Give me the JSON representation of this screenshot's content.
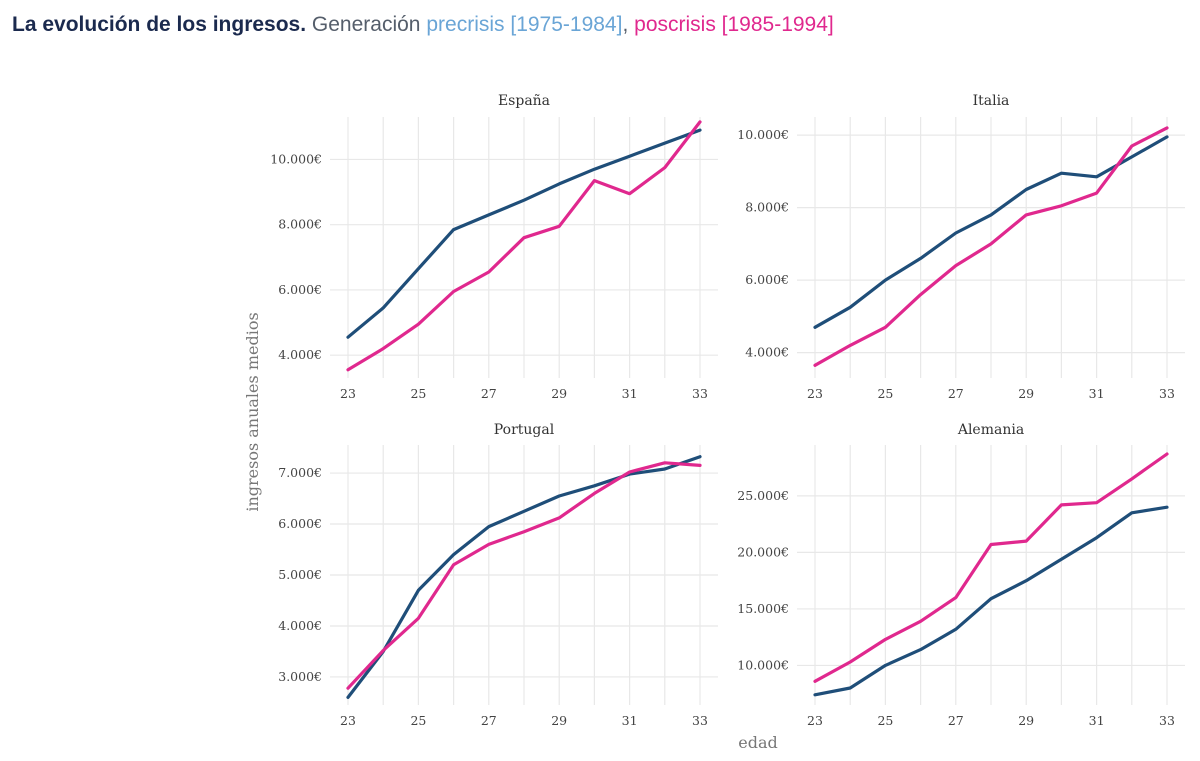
{
  "header": {
    "title_bold": "La evolución de los ingresos.",
    "generation": "Generación",
    "pre_label": "precrisis [1975-1984]",
    "separator": ",",
    "post_label": "poscrisis [1985-1994]"
  },
  "colors": {
    "precrisis": "#1f4e79",
    "poscrisis": "#e0288e",
    "pre_legend_text": "#6aa5d6"
  },
  "chart_data": {
    "type": "line",
    "xlabel": "edad",
    "ylabel": "ingresos anuales medios",
    "x_ticks": [
      23,
      25,
      27,
      29,
      31,
      33
    ],
    "x": [
      23,
      24,
      25,
      26,
      27,
      28,
      29,
      30,
      31,
      32,
      33
    ],
    "grid": true,
    "panels": [
      {
        "title": "España",
        "ylim": [
          3300,
          11300
        ],
        "y_ticks": [
          4000,
          6000,
          8000,
          10000
        ],
        "y_tick_labels": [
          "4.000€",
          "6.000€",
          "8.000€",
          "10.000€"
        ],
        "series": [
          {
            "name": "precrisis [1975-1984]",
            "values": [
              4550,
              5450,
              6650,
              7850,
              8300,
              8750,
              9250,
              9700,
              10100,
              10500,
              10900
            ]
          },
          {
            "name": "poscrisis [1985-1994]",
            "values": [
              3550,
              4200,
              4950,
              5950,
              6550,
              7600,
              7950,
              9350,
              8950,
              9750,
              11150
            ]
          }
        ]
      },
      {
        "title": "Italia",
        "ylim": [
          3300,
          10500
        ],
        "y_ticks": [
          4000,
          6000,
          8000,
          10000
        ],
        "y_tick_labels": [
          "4.000€",
          "6.000€",
          "8.000€",
          "10.000€"
        ],
        "series": [
          {
            "name": "precrisis [1975-1984]",
            "values": [
              4700,
              5250,
              6000,
              6600,
              7300,
              7800,
              8500,
              8950,
              8850,
              9400,
              9950
            ]
          },
          {
            "name": "poscrisis [1985-1994]",
            "values": [
              3650,
              4200,
              4700,
              5600,
              6400,
              7000,
              7800,
              8050,
              8400,
              9700,
              10200
            ]
          }
        ]
      },
      {
        "title": "Portugal",
        "ylim": [
          2450,
          7550
        ],
        "y_ticks": [
          3000,
          4000,
          5000,
          6000,
          7000
        ],
        "y_tick_labels": [
          "3.000€",
          "4.000€",
          "5.000€",
          "6.000€",
          "7.000€"
        ],
        "series": [
          {
            "name": "precrisis [1975-1984]",
            "values": [
              2600,
              3500,
              4700,
              5400,
              5950,
              6250,
              6550,
              6750,
              6980,
              7080,
              7320
            ]
          },
          {
            "name": "poscrisis [1985-1994]",
            "values": [
              2780,
              3520,
              4150,
              5200,
              5600,
              5850,
              6120,
              6600,
              7020,
              7200,
              7150
            ]
          }
        ]
      },
      {
        "title": "Alemania",
        "ylim": [
          6500,
          29500
        ],
        "y_ticks": [
          10000,
          15000,
          20000,
          25000
        ],
        "y_tick_labels": [
          "10.000€",
          "15.000€",
          "20.000€",
          "25.000€"
        ],
        "series": [
          {
            "name": "precrisis [1975-1984]",
            "values": [
              7400,
              8000,
              10000,
              11400,
              13200,
              15900,
              17500,
              19400,
              21300,
              23500,
              24000
            ]
          },
          {
            "name": "poscrisis [1985-1994]",
            "values": [
              8600,
              10300,
              12300,
              13900,
              16000,
              20700,
              21000,
              24200,
              24400,
              26500,
              28700
            ]
          }
        ]
      }
    ]
  }
}
